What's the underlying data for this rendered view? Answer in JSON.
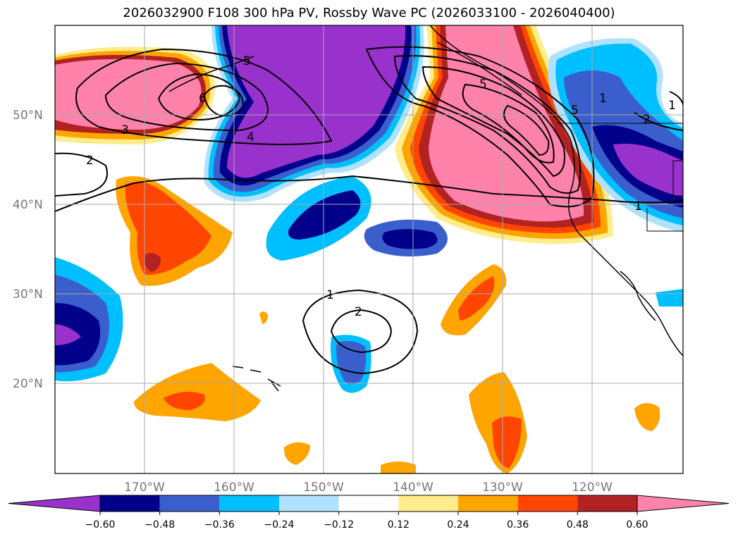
{
  "title": "2026032900 F108 300 hPa PV, Rossby Wave PC (2026033100 - 2026040400)",
  "lat_labels": [
    "50°N",
    "40°N",
    "30°N",
    "20°N"
  ],
  "lon_labels": [
    "170°W",
    "160°W",
    "150°W",
    "140°W",
    "130°W",
    "120°W"
  ],
  "colorbar": {
    "colors": [
      "#9932CC",
      "#00008B",
      "#3A5FCD",
      "#00BFFF",
      "#B0E2FF",
      "#FFFFFF",
      "#FFEC8B",
      "#FFA500",
      "#FF4500",
      "#B22222",
      "#FF82AB"
    ],
    "ticks": [
      "−0.60",
      "−0.48",
      "−0.36",
      "−0.24",
      "−0.12",
      "0.12",
      "0.24",
      "0.36",
      "0.48",
      "0.60"
    ]
  },
  "contour_labels": [
    "2",
    "3",
    "4",
    "5",
    "6",
    "5",
    "5",
    "1",
    "1",
    "2",
    "1",
    "2",
    "1"
  ]
}
